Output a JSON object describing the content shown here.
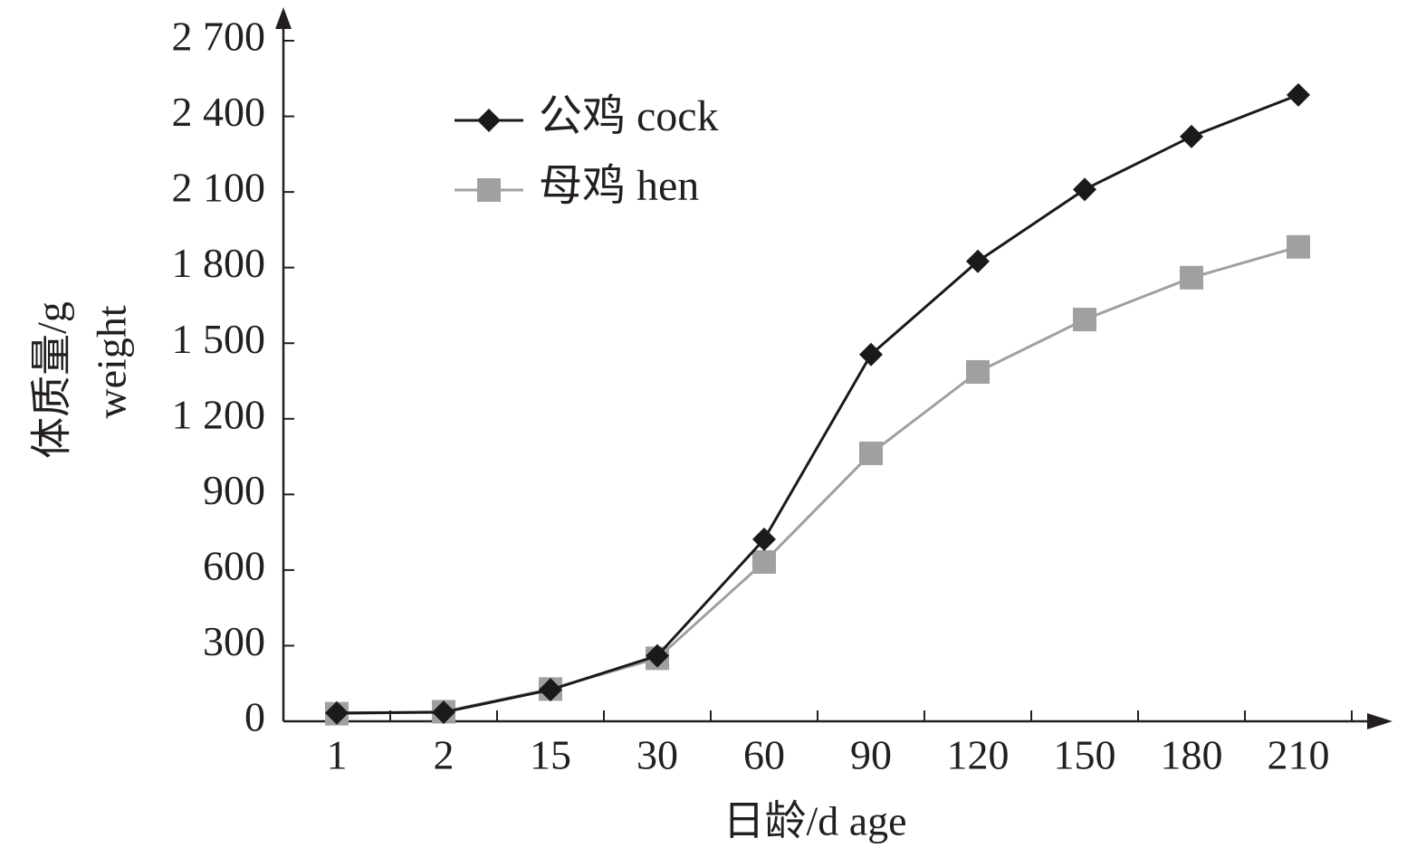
{
  "chart_data": {
    "type": "line",
    "categories": [
      "1",
      "2",
      "15",
      "30",
      "60",
      "90",
      "120",
      "150",
      "180",
      "210"
    ],
    "series": [
      {
        "name": "公鸡 cock",
        "color": "#1a1a1a",
        "marker": "diamond",
        "values": [
          33,
          36,
          125,
          260,
          722,
          1455,
          1825,
          2110,
          2320,
          2485
        ]
      },
      {
        "name": "母鸡 hen",
        "color": "#a0a0a2",
        "marker": "square",
        "values": [
          30,
          38,
          128,
          250,
          632,
          1063,
          1386,
          1594,
          1760,
          1882
        ]
      }
    ],
    "ylim": [
      0,
      2700
    ],
    "yticks": [
      0,
      300,
      600,
      900,
      {
        "value": 1200,
        "label": "1 200"
      },
      {
        "value": 1500,
        "label": "1 500"
      },
      {
        "value": 1800,
        "label": "1 800"
      },
      {
        "value": 2100,
        "label": "2 100"
      },
      {
        "value": 2400,
        "label": "2 400"
      },
      {
        "value": 2700,
        "label": "2 700"
      }
    ],
    "ylabel": [
      "体质量/g",
      "weight"
    ],
    "xlabel": "日龄/d age"
  }
}
